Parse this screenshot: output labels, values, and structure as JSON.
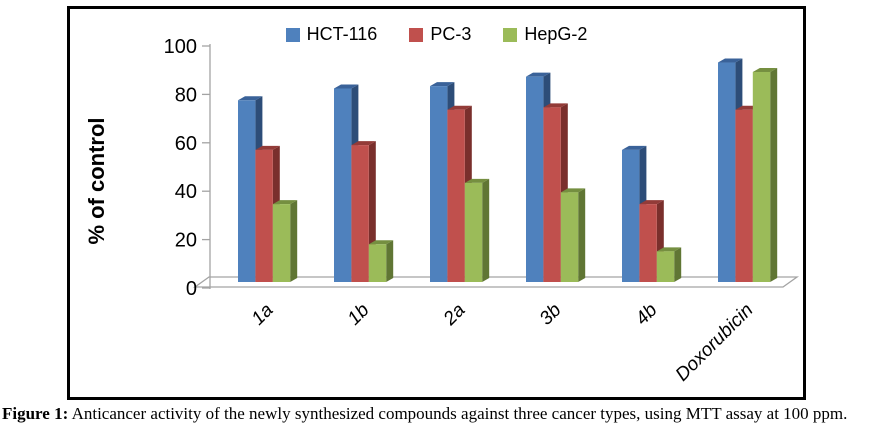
{
  "figure": {
    "caption_prefix": "Figure 1:",
    "caption_text": " Anticancer activity of the newly synthesized compounds against three cancer types, using MTT assay at 100 ppm."
  },
  "chart_data": {
    "type": "bar",
    "style": "3d-clustered-column",
    "title": "",
    "xlabel": "",
    "ylabel": "% of control",
    "ylim": [
      0,
      100
    ],
    "yticks": [
      0,
      20,
      40,
      60,
      80,
      100
    ],
    "grid": false,
    "legend_position": "top",
    "categories": [
      "1a",
      "1b",
      "2a",
      "3b",
      "4b",
      "Doxorubicin"
    ],
    "series": [
      {
        "name": "HCT-116",
        "color": "#4F81BD",
        "top_color": "#3A6299",
        "side_color": "#2D4D78",
        "values": [
          77,
          82,
          83,
          87,
          56,
          93
        ]
      },
      {
        "name": "PC-3",
        "color": "#C0504D",
        "top_color": "#933B38",
        "side_color": "#7A2F2C",
        "values": [
          56,
          58,
          73,
          74,
          33,
          73
        ]
      },
      {
        "name": "HepG-2",
        "color": "#9BBB59",
        "top_color": "#758F40",
        "side_color": "#607634",
        "values": [
          33,
          16,
          42,
          38,
          13,
          89
        ]
      }
    ],
    "axis_color": "#A3A3A3"
  }
}
